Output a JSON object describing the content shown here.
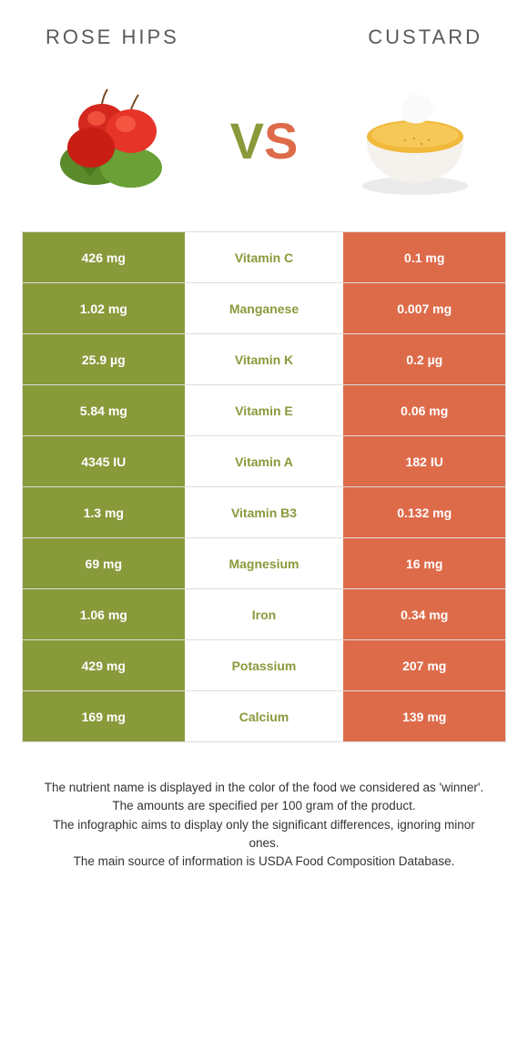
{
  "header": {
    "left_title": "Rose hips",
    "right_title": "Custard"
  },
  "vs": {
    "v": "V",
    "s": "S"
  },
  "colors": {
    "green": "#889a3a",
    "orange": "#dd6b4a",
    "mid_bg": "#ffffff"
  },
  "rows": [
    {
      "left": "426 mg",
      "label": "Vitamin C",
      "right": "0.1 mg",
      "winner": "left"
    },
    {
      "left": "1.02 mg",
      "label": "Manganese",
      "right": "0.007 mg",
      "winner": "left"
    },
    {
      "left": "25.9 µg",
      "label": "Vitamin K",
      "right": "0.2 µg",
      "winner": "left"
    },
    {
      "left": "5.84 mg",
      "label": "Vitamin E",
      "right": "0.06 mg",
      "winner": "left"
    },
    {
      "left": "4345 IU",
      "label": "Vitamin A",
      "right": "182 IU",
      "winner": "left"
    },
    {
      "left": "1.3 mg",
      "label": "Vitamin B3",
      "right": "0.132 mg",
      "winner": "left"
    },
    {
      "left": "69 mg",
      "label": "Magnesium",
      "right": "16 mg",
      "winner": "left"
    },
    {
      "left": "1.06 mg",
      "label": "Iron",
      "right": "0.34 mg",
      "winner": "left"
    },
    {
      "left": "429 mg",
      "label": "Potassium",
      "right": "207 mg",
      "winner": "left"
    },
    {
      "left": "169 mg",
      "label": "Calcium",
      "right": "139 mg",
      "winner": "left"
    }
  ],
  "footer": {
    "l1": "The nutrient name is displayed in the color of the food we considered as 'winner'.",
    "l2": "The amounts are specified per 100 gram of the product.",
    "l3": "The infographic aims to display only the significant differences, ignoring minor ones.",
    "l4": "The main source of information is USDA Food Composition Database."
  }
}
